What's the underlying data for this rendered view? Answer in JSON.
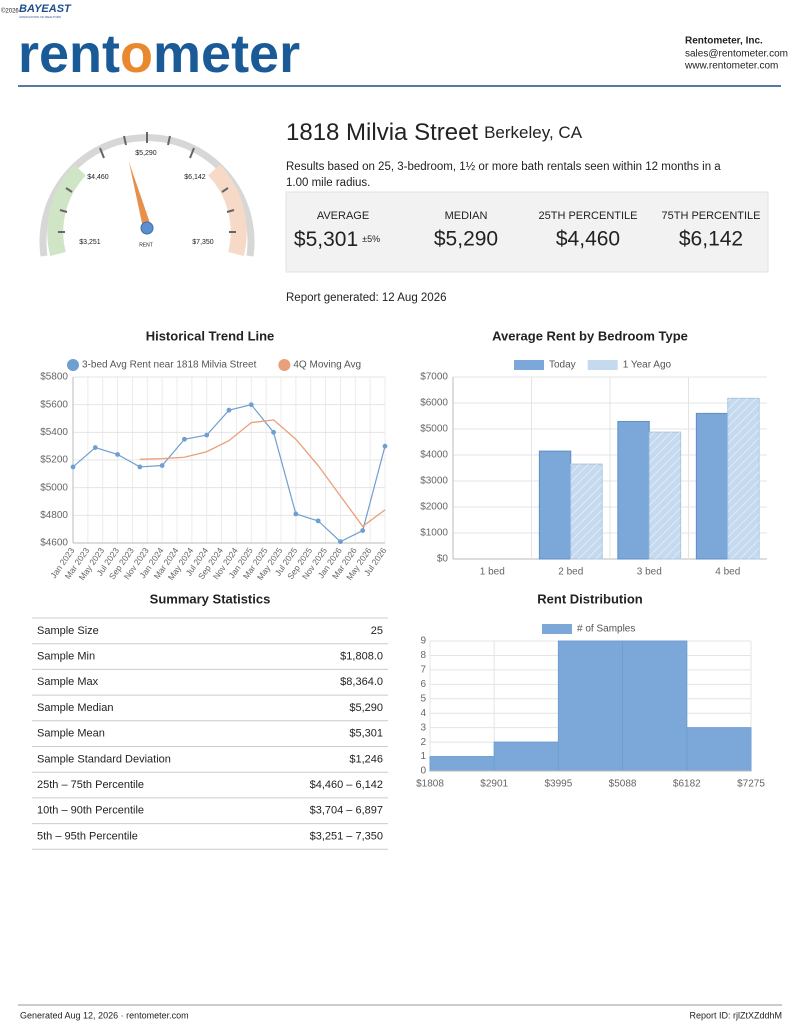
{
  "brand": {
    "copyright": "©2026",
    "name": "BAYEAST",
    "sub": "ASSOCIATION OF REALTORS"
  },
  "header": {
    "logo_parts": [
      "rent",
      "o",
      "meter"
    ],
    "company": "Rentometer, Inc.",
    "email": "sales@rentometer.com",
    "website": "www.rentometer.com"
  },
  "property": {
    "street": "1818 Milvia Street",
    "city": "Berkeley, CA",
    "description": [
      "Results based on 25, 3-bedroom, 1½ or more bath rentals seen within 12 months in a",
      "1.00 mile radius."
    ]
  },
  "gauge": {
    "labels": [
      "$3,251",
      "$4,460",
      "$5,290",
      "$6,142",
      "$7,350"
    ],
    "center_label": "RENT"
  },
  "stats": [
    {
      "label": "AVERAGE",
      "value": "$5,301",
      "note": "±5%"
    },
    {
      "label": "MEDIAN",
      "value": "$5,290"
    },
    {
      "label": "25TH PERCENTILE",
      "value": "$4,460"
    },
    {
      "label": "75TH PERCENTILE",
      "value": "$6,142"
    }
  ],
  "report_generated": "Report generated: 12 Aug 2026",
  "chart_data": [
    {
      "type": "line",
      "title": "Historical Trend Line",
      "xticks": [
        "Jan 2023",
        "Mar 2023",
        "May 2023",
        "Jul 2023",
        "Sep 2023",
        "Nov 2023",
        "Jan 2024",
        "Mar 2024",
        "May 2024",
        "Jul 2024",
        "Sep 2024",
        "Nov 2024",
        "Jan 2025",
        "Mar 2025",
        "May 2025",
        "Jul 2025",
        "Sep 2025",
        "Nov 2025",
        "Jan 2026",
        "Mar 2026",
        "May 2026",
        "Jul 2026"
      ],
      "xlim": [
        "Jan 2023",
        "Jul 2026"
      ],
      "x": [
        "Jan 2023",
        "Apr 2023",
        "Jul 2023",
        "Oct 2023",
        "Jan 2024",
        "Apr 2024",
        "Jul 2024",
        "Oct 2024",
        "Jan 2025",
        "Apr 2025",
        "Jul 2025",
        "Oct 2025",
        "Jan 2026",
        "Apr 2026",
        "Jul 2026"
      ],
      "series": [
        {
          "name": "3-bed Avg Rent near 1818 Milvia Street",
          "color": "#6f9fd0",
          "values": [
            5150,
            5290,
            5240,
            5150,
            5160,
            5350,
            5380,
            5560,
            5600,
            5400,
            4810,
            4760,
            4610,
            4690,
            5300
          ]
        },
        {
          "name": "4Q Moving Avg",
          "color": "#e9a07a",
          "values": [
            null,
            null,
            null,
            5205,
            5210,
            5220,
            5260,
            5340,
            5470,
            5490,
            5350,
            5160,
            4940,
            4720,
            4840
          ]
        }
      ],
      "ylim": [
        4600,
        5800
      ],
      "yticks": [
        {
          "value": 4600,
          "label": "$4600"
        },
        {
          "value": 4800,
          "label": "$4800"
        },
        {
          "value": 5000,
          "label": "$5000"
        },
        {
          "value": 5200,
          "label": "$5200"
        },
        {
          "value": 5400,
          "label": "$5400"
        },
        {
          "value": 5600,
          "label": "$5600"
        },
        {
          "value": 5800,
          "label": "$5800"
        }
      ],
      "grid": true,
      "legend": "top"
    },
    {
      "type": "bar",
      "title": "Average Rent by Bedroom Type",
      "categories": [
        "1 bed",
        "2 bed",
        "3 bed",
        "4 bed"
      ],
      "series": [
        {
          "name": "Today",
          "color": "#7ba7d9",
          "values": [
            null,
            4150,
            5290,
            5600
          ]
        },
        {
          "name": "1 Year Ago",
          "color": "#c5d9ef",
          "values": [
            null,
            3650,
            4880,
            6180
          ]
        }
      ],
      "ylim": [
        0,
        7000
      ],
      "yticks": [
        {
          "value": 0,
          "label": "$0"
        },
        {
          "value": 1000,
          "label": "$1000"
        },
        {
          "value": 2000,
          "label": "$2000"
        },
        {
          "value": 3000,
          "label": "$3000"
        },
        {
          "value": 4000,
          "label": "$4000"
        },
        {
          "value": 5000,
          "label": "$5000"
        },
        {
          "value": 6000,
          "label": "$6000"
        },
        {
          "value": 7000,
          "label": "$7000"
        }
      ],
      "grid": true,
      "legend": "top"
    },
    {
      "type": "histogram",
      "title": "Rent Distribution",
      "series_name": "# of Samples",
      "color": "#7ba7d9",
      "bins": [
        {
          "value": 1808,
          "label": "$1808"
        },
        {
          "value": 2901,
          "label": "$2901"
        },
        {
          "value": 3995,
          "label": "$3995"
        },
        {
          "value": 5088,
          "label": "$5088"
        },
        {
          "value": 6182,
          "label": "$6182"
        },
        {
          "value": 7275,
          "label": "$7275"
        }
      ],
      "values": [
        1,
        2,
        9,
        9,
        3
      ],
      "ylim": [
        0,
        9
      ],
      "yticks": [
        0,
        1,
        2,
        3,
        4,
        5,
        6,
        7,
        8,
        9
      ],
      "grid": true,
      "legend": "top"
    }
  ],
  "summary": {
    "title": "Summary Statistics",
    "rows": [
      [
        "Sample Size",
        "25"
      ],
      [
        "Sample Min",
        "$1,808.0"
      ],
      [
        "Sample Max",
        "$8,364.0"
      ],
      [
        "Sample Median",
        "$5,290"
      ],
      [
        "Sample Mean",
        "$5,301"
      ],
      [
        "Sample Standard Deviation",
        "$1,246"
      ],
      [
        "25th – 75th Percentile",
        "$4,460 – 6,142"
      ],
      [
        "10th – 90th Percentile",
        "$3,704 – 6,897"
      ],
      [
        "5th – 95th Percentile",
        "$3,251 – 7,350"
      ]
    ]
  },
  "footer": {
    "generated": "Generated Aug 12, 2026 · rentometer.com",
    "report_id": "Report ID: rjlZtXZddhM"
  }
}
